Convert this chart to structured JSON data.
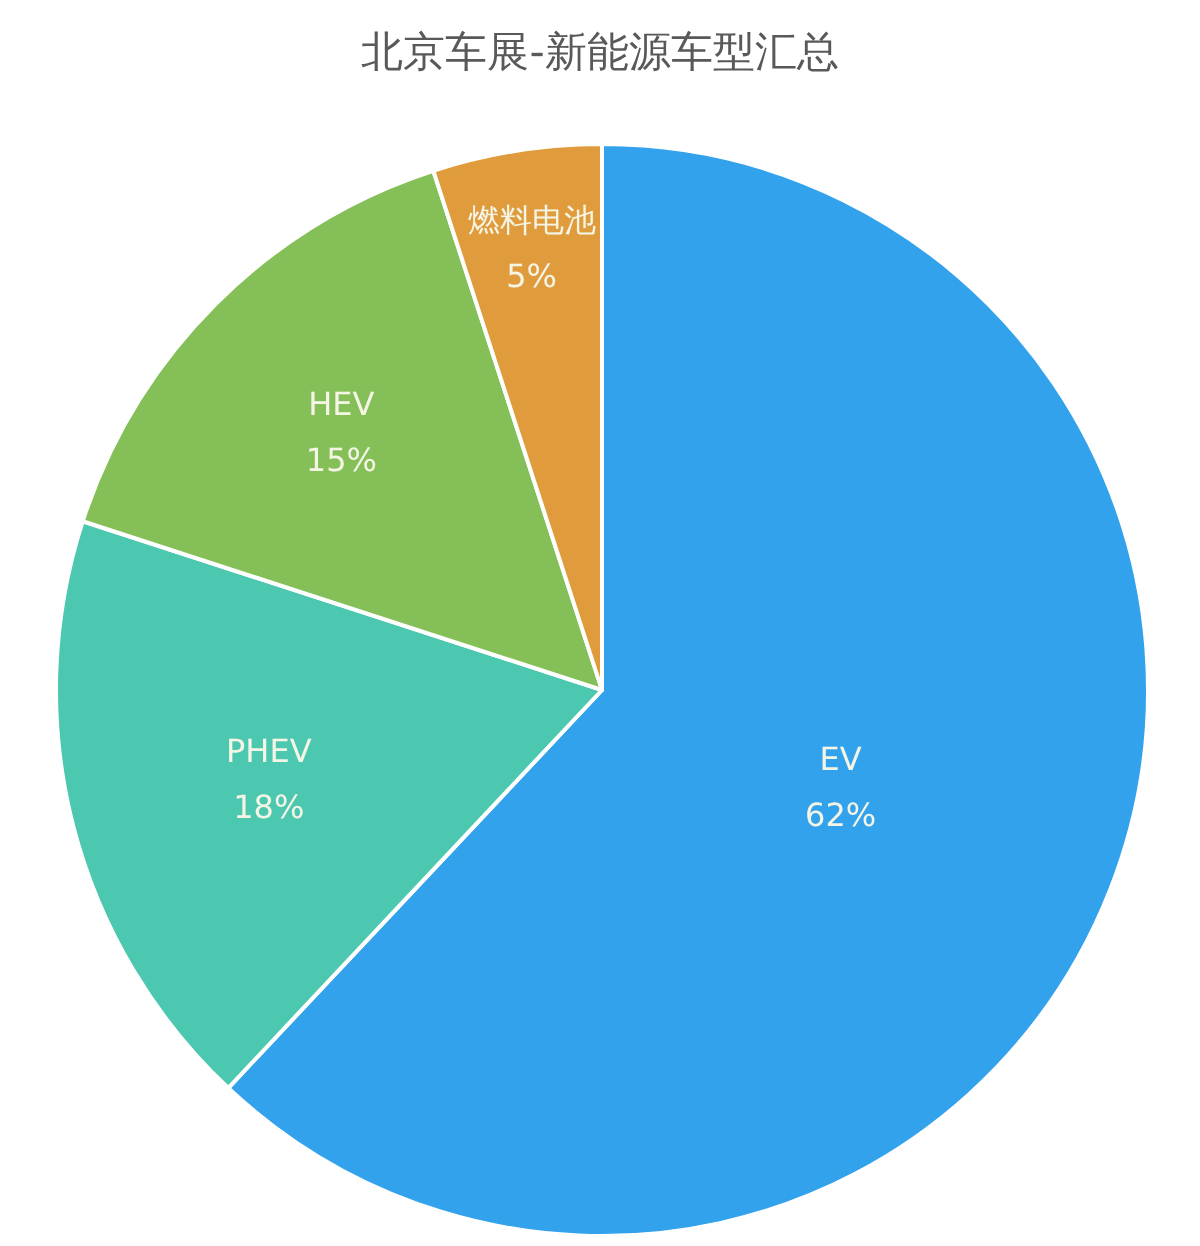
{
  "chart_data": {
    "type": "pie",
    "title": "北京车展-新能源车型汇总",
    "categories": [
      "EV",
      "PHEV",
      "HEV",
      "燃料电池"
    ],
    "values": [
      62,
      18,
      15,
      5
    ],
    "colors": [
      "#33a2ec",
      "#4cc8b0",
      "#84bf58",
      "#e09c3c"
    ],
    "value_labels": [
      "62%",
      "18%",
      "15%",
      "5%"
    ]
  }
}
